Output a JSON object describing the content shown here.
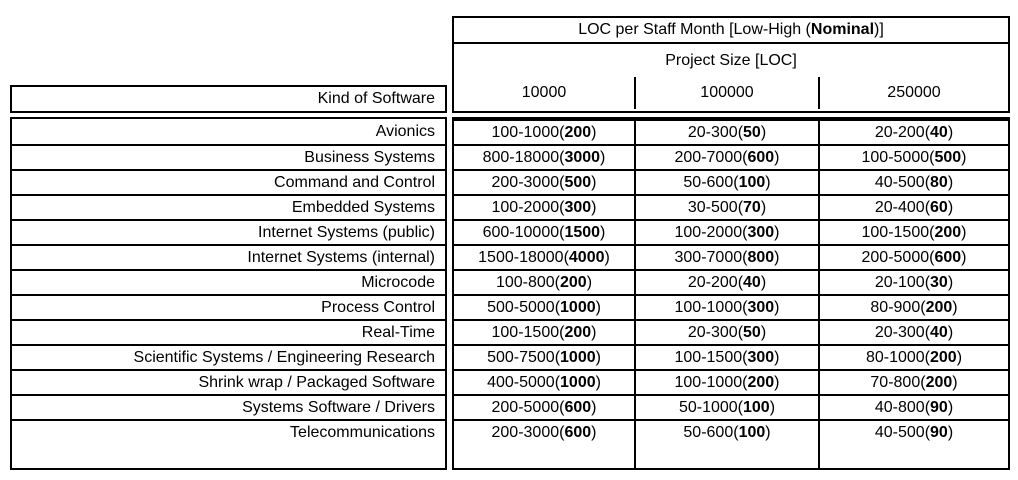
{
  "header": {
    "title_prefix": "LOC per Staff Month [Low-High (",
    "title_bold": "Nominal",
    "title_suffix": ")]",
    "subtitle": "Project Size [LOC]",
    "kind_label": "Kind of Software",
    "size_columns": [
      "10000",
      "100000",
      "250000"
    ]
  },
  "colors": {
    "border": "#000000",
    "background": "#ffffff",
    "text": "#000000"
  },
  "table": {
    "rows": [
      {
        "kind": "Avionics",
        "cells": [
          {
            "range": "100-1000",
            "nominal": "200"
          },
          {
            "range": "20-300",
            "nominal": "50"
          },
          {
            "range": "20-200",
            "nominal": "40"
          }
        ]
      },
      {
        "kind": "Business Systems",
        "cells": [
          {
            "range": "800-18000",
            "nominal": "3000"
          },
          {
            "range": "200-7000",
            "nominal": "600"
          },
          {
            "range": "100-5000",
            "nominal": "500"
          }
        ]
      },
      {
        "kind": "Command and Control",
        "cells": [
          {
            "range": "200-3000",
            "nominal": "500"
          },
          {
            "range": "50-600",
            "nominal": "100"
          },
          {
            "range": "40-500",
            "nominal": "80"
          }
        ]
      },
      {
        "kind": "Embedded Systems",
        "cells": [
          {
            "range": "100-2000",
            "nominal": "300"
          },
          {
            "range": "30-500",
            "nominal": "70"
          },
          {
            "range": "20-400",
            "nominal": "60"
          }
        ]
      },
      {
        "kind": "Internet Systems (public)",
        "cells": [
          {
            "range": "600-10000",
            "nominal": "1500"
          },
          {
            "range": "100-2000",
            "nominal": "300"
          },
          {
            "range": "100-1500",
            "nominal": "200"
          }
        ]
      },
      {
        "kind": "Internet Systems (internal)",
        "cells": [
          {
            "range": "1500-18000",
            "nominal": "4000"
          },
          {
            "range": "300-7000",
            "nominal": "800"
          },
          {
            "range": "200-5000",
            "nominal": "600"
          }
        ]
      },
      {
        "kind": "Microcode",
        "cells": [
          {
            "range": "100-800",
            "nominal": "200"
          },
          {
            "range": "20-200",
            "nominal": "40"
          },
          {
            "range": "20-100",
            "nominal": "30"
          }
        ]
      },
      {
        "kind": "Process Control",
        "cells": [
          {
            "range": "500-5000",
            "nominal": "1000"
          },
          {
            "range": "100-1000",
            "nominal": "300"
          },
          {
            "range": "80-900",
            "nominal": "200"
          }
        ]
      },
      {
        "kind": "Real-Time",
        "cells": [
          {
            "range": "100-1500",
            "nominal": "200"
          },
          {
            "range": "20-300",
            "nominal": "50"
          },
          {
            "range": "20-300",
            "nominal": "40"
          }
        ]
      },
      {
        "kind": "Scientific Systems / Engineering Research",
        "cells": [
          {
            "range": "500-7500",
            "nominal": "1000"
          },
          {
            "range": "100-1500",
            "nominal": "300"
          },
          {
            "range": "80-1000",
            "nominal": "200"
          }
        ]
      },
      {
        "kind": "Shrink wrap / Packaged Software",
        "cells": [
          {
            "range": "400-5000",
            "nominal": "1000"
          },
          {
            "range": "100-1000",
            "nominal": "200"
          },
          {
            "range": "70-800",
            "nominal": "200"
          }
        ]
      },
      {
        "kind": "Systems Software / Drivers",
        "cells": [
          {
            "range": "200-5000",
            "nominal": "600"
          },
          {
            "range": "50-1000",
            "nominal": "100"
          },
          {
            "range": "40-800",
            "nominal": "90"
          }
        ]
      },
      {
        "kind": "Telecommunications",
        "cells": [
          {
            "range": "200-3000",
            "nominal": "600"
          },
          {
            "range": "50-600",
            "nominal": "100"
          },
          {
            "range": "40-500",
            "nominal": "90"
          }
        ]
      }
    ]
  }
}
